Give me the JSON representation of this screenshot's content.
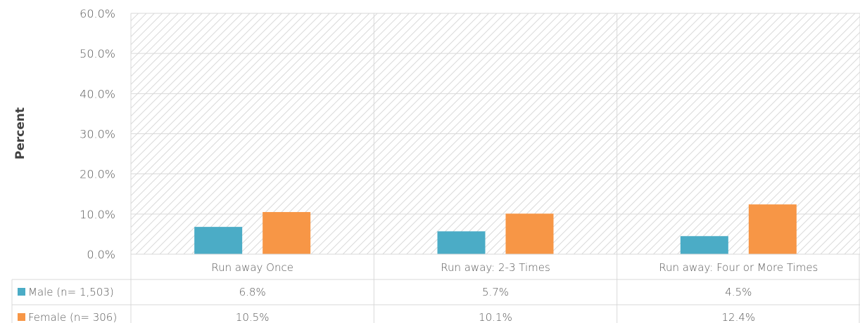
{
  "chart_data": {
    "type": "bar",
    "ylabel": "Percent",
    "ylim": [
      0,
      60
    ],
    "yticks": [
      "0.0%",
      "10.0%",
      "20.0%",
      "30.0%",
      "40.0%",
      "50.0%",
      "60.0%"
    ],
    "categories": [
      "Run away Once",
      "Run away: 2-3 Times",
      "Run away: Four or More Times"
    ],
    "series": [
      {
        "name": "Male (n= 1,503)",
        "values": [
          6.8,
          5.7,
          4.5
        ],
        "labels": [
          "6.8%",
          "5.7%",
          "4.5%"
        ],
        "color": "#4BACC6"
      },
      {
        "name": "Female (n= 306)",
        "values": [
          10.5,
          10.1,
          12.4
        ],
        "labels": [
          "10.5%",
          "10.1%",
          "12.4%"
        ],
        "color": "#F79646"
      }
    ],
    "grid": true,
    "legend": "data-table"
  }
}
